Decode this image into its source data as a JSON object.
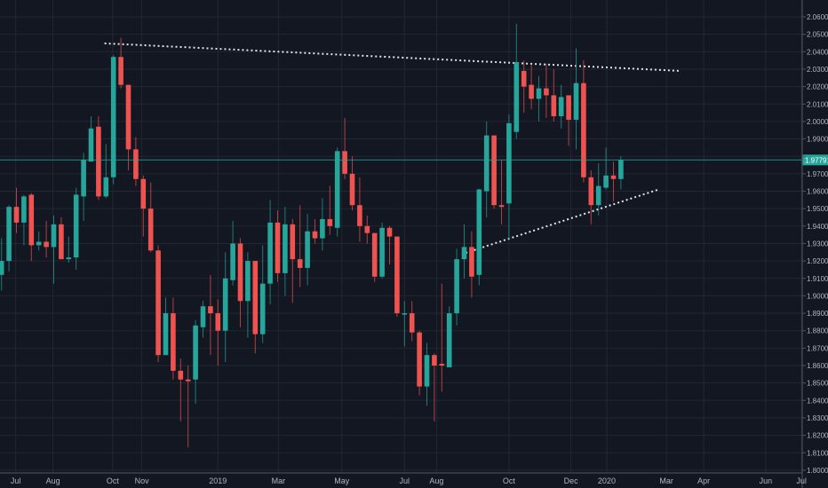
{
  "chart_data": {
    "type": "candlestick",
    "interval": "weekly",
    "ylim": [
      1.8,
      2.06
    ],
    "y_step": 0.01,
    "grid": true,
    "colors": {
      "background": "#131722",
      "grid": "#232733",
      "up": "#26a69a",
      "down": "#ef5350",
      "price_line": "#26a69a",
      "trendline": "#e0e3eb",
      "axis_text": "#b2b5be"
    },
    "last_price": 1.97791,
    "last_price_label": "1.97791",
    "x_ticks": [
      {
        "label": "Jul",
        "week": 1.9
      },
      {
        "label": "Aug",
        "week": 6.9
      },
      {
        "label": "Oct",
        "week": 14.9
      },
      {
        "label": "Nov",
        "week": 18.8
      },
      {
        "label": "2019",
        "week": 29.0
      },
      {
        "label": "Mar",
        "week": 37.1
      },
      {
        "label": "May",
        "week": 45.6
      },
      {
        "label": "Jul",
        "week": 54.0
      },
      {
        "label": "Aug",
        "week": 58.3
      },
      {
        "label": "Oct",
        "week": 68.0
      },
      {
        "label": "Dec",
        "week": 76.3
      },
      {
        "label": "2020",
        "week": 81.1
      },
      {
        "label": "Mar",
        "week": 89.1
      },
      {
        "label": "Apr",
        "week": 94.1
      },
      {
        "label": "Jun",
        "week": 102.4
      },
      {
        "label": "Jul",
        "week": 107.2
      }
    ],
    "trendlines": [
      {
        "name": "resistance",
        "from": {
          "week": 13.8,
          "price": 2.0448
        },
        "to": {
          "week": 90.9,
          "price": 2.029
        }
      },
      {
        "name": "support",
        "from": {
          "week": 62.2,
          "price": 1.9246
        },
        "to": {
          "week": 87.9,
          "price": 1.9608
        }
      }
    ],
    "ohlc": [
      [
        1.912,
        1.933,
        1.903,
        1.92
      ],
      [
        1.92,
        1.952,
        1.914,
        1.951
      ],
      [
        1.951,
        1.962,
        1.936,
        1.942
      ],
      [
        1.942,
        1.958,
        1.929,
        1.957
      ],
      [
        1.958,
        1.959,
        1.92,
        1.929
      ],
      [
        1.929,
        1.937,
        1.926,
        1.931
      ],
      [
        1.931,
        1.943,
        1.922,
        1.928
      ],
      [
        1.928,
        1.946,
        1.907,
        1.941
      ],
      [
        1.941,
        1.945,
        1.921,
        1.921
      ],
      [
        1.921,
        1.934,
        1.919,
        1.922
      ],
      [
        1.922,
        1.962,
        1.915,
        1.958
      ],
      [
        1.957,
        1.982,
        1.943,
        1.978
      ],
      [
        1.977,
        2.003,
        1.977,
        1.996
      ],
      [
        1.997,
        2.003,
        1.955,
        1.957
      ],
      [
        1.957,
        1.987,
        1.956,
        1.968
      ],
      [
        1.968,
        2.038,
        1.964,
        2.037
      ],
      [
        2.037,
        2.048,
        2.019,
        2.021
      ],
      [
        2.021,
        2.021,
        1.972,
        1.984
      ],
      [
        1.984,
        1.991,
        1.963,
        1.967
      ],
      [
        1.967,
        1.969,
        1.934,
        1.95
      ],
      [
        1.95,
        1.965,
        1.925,
        1.926
      ],
      [
        1.926,
        1.929,
        1.862,
        1.866
      ],
      [
        1.866,
        1.899,
        1.866,
        1.89
      ],
      [
        1.89,
        1.899,
        1.852,
        1.857
      ],
      [
        1.857,
        1.864,
        1.828,
        1.852
      ],
      [
        1.852,
        1.86,
        1.813,
        1.851
      ],
      [
        1.852,
        1.886,
        1.838,
        1.883
      ],
      [
        1.882,
        1.897,
        1.876,
        1.894
      ],
      [
        1.894,
        1.912,
        1.866,
        1.89
      ],
      [
        1.89,
        1.898,
        1.86,
        1.88
      ],
      [
        1.88,
        1.925,
        1.862,
        1.91
      ],
      [
        1.909,
        1.943,
        1.906,
        1.93
      ],
      [
        1.93,
        1.933,
        1.882,
        1.897
      ],
      [
        1.897,
        1.925,
        1.876,
        1.92
      ],
      [
        1.92,
        1.92,
        1.867,
        1.878
      ],
      [
        1.878,
        1.929,
        1.873,
        1.907
      ],
      [
        1.907,
        1.955,
        1.895,
        1.942
      ],
      [
        1.942,
        1.949,
        1.908,
        1.913
      ],
      [
        1.913,
        1.951,
        1.9,
        1.941
      ],
      [
        1.941,
        1.944,
        1.896,
        1.921
      ],
      [
        1.921,
        1.952,
        1.905,
        1.916
      ],
      [
        1.916,
        1.947,
        1.906,
        1.937
      ],
      [
        1.937,
        1.944,
        1.93,
        1.933
      ],
      [
        1.933,
        1.956,
        1.926,
        1.944
      ],
      [
        1.944,
        1.963,
        1.935,
        1.94
      ],
      [
        1.939,
        1.985,
        1.934,
        1.983
      ],
      [
        1.983,
        2.002,
        1.967,
        1.97
      ],
      [
        1.97,
        1.98,
        1.949,
        1.952
      ],
      [
        1.952,
        1.968,
        1.931,
        1.94
      ],
      [
        1.94,
        1.946,
        1.93,
        1.936
      ],
      [
        1.936,
        1.936,
        1.908,
        1.911
      ],
      [
        1.911,
        1.942,
        1.91,
        1.939
      ],
      [
        1.939,
        1.94,
        1.918,
        1.934
      ],
      [
        1.934,
        1.934,
        1.888,
        1.89
      ],
      [
        1.89,
        1.897,
        1.871,
        1.89
      ],
      [
        1.89,
        1.897,
        1.874,
        1.879
      ],
      [
        1.879,
        1.88,
        1.843,
        1.848
      ],
      [
        1.848,
        1.873,
        1.837,
        1.866
      ],
      [
        1.866,
        1.867,
        1.828,
        1.86
      ],
      [
        1.861,
        1.907,
        1.845,
        1.86
      ],
      [
        1.859,
        1.894,
        1.859,
        1.89
      ],
      [
        1.89,
        1.927,
        1.883,
        1.921
      ],
      [
        1.921,
        1.941,
        1.91,
        1.928
      ],
      [
        1.928,
        1.937,
        1.899,
        1.911
      ],
      [
        1.912,
        1.9615,
        1.906,
        1.961
      ],
      [
        1.96,
        2.0,
        1.945,
        1.992
      ],
      [
        1.992,
        1.992,
        1.95,
        1.952
      ],
      [
        1.952,
        1.978,
        1.941,
        1.951
      ],
      [
        1.953,
        2.004,
        1.932,
        1.999
      ],
      [
        1.994,
        2.056,
        1.99,
        2.034
      ],
      [
        2.029,
        2.035,
        2.005,
        2.02
      ],
      [
        2.021,
        2.033,
        2.007,
        2.013
      ],
      [
        2.013,
        2.026,
        2.0,
        2.019
      ],
      [
        2.019,
        2.033,
        2.002,
        2.015
      ],
      [
        2.015,
        2.03,
        2.0,
        2.003
      ],
      [
        2.003,
        2.021,
        1.996,
        2.014
      ],
      [
        2.015,
        2.015,
        1.986,
        2.001
      ],
      [
        2.001,
        2.042,
        1.984,
        2.022
      ],
      [
        2.022,
        2.035,
        1.965,
        1.968
      ],
      [
        1.968,
        1.972,
        1.941,
        1.952
      ],
      [
        1.952,
        1.976,
        1.946,
        1.963
      ],
      [
        1.962,
        1.985,
        1.961,
        1.969
      ],
      [
        1.969,
        1.977,
        1.954,
        1.967
      ],
      [
        1.967,
        1.98,
        1.961,
        1.97791
      ]
    ]
  }
}
